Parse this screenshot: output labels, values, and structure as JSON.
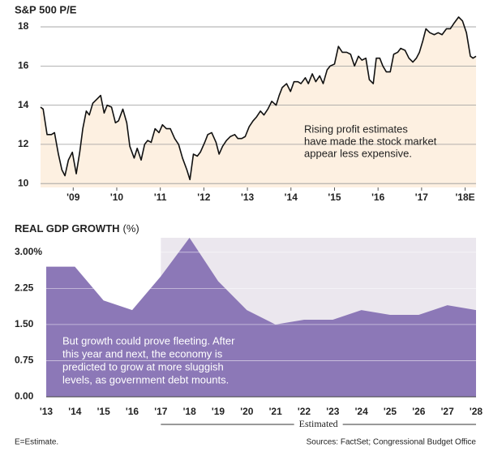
{
  "chart_data": [
    {
      "type": "line",
      "title": "S&P 500 P/E",
      "x": [
        2008.25,
        2008.31,
        2008.4,
        2008.5,
        2008.57,
        2008.66,
        2008.74,
        2008.81,
        2008.89,
        2008.98,
        2009.07,
        2009.15,
        2009.22,
        2009.3,
        2009.37,
        2009.45,
        2009.54,
        2009.63,
        2009.71,
        2009.78,
        2009.88,
        2009.97,
        2010.04,
        2010.14,
        2010.23,
        2010.3,
        2010.4,
        2010.47,
        2010.56,
        2010.64,
        2010.71,
        2010.79,
        2010.88,
        2010.97,
        2011.05,
        2011.14,
        2011.23,
        2011.33,
        2011.42,
        2011.51,
        2011.61,
        2011.68,
        2011.76,
        2011.85,
        2011.92,
        2012.02,
        2012.09,
        2012.18,
        2012.28,
        2012.35,
        2012.43,
        2012.52,
        2012.61,
        2012.71,
        2012.78,
        2012.87,
        2012.95,
        2013.04,
        2013.13,
        2013.21,
        2013.3,
        2013.38,
        2013.47,
        2013.56,
        2013.66,
        2013.73,
        2013.8,
        2013.9,
        2013.99,
        2014.07,
        2014.16,
        2014.23,
        2014.33,
        2014.4,
        2014.49,
        2014.57,
        2014.66,
        2014.74,
        2014.83,
        2014.9,
        2015.0,
        2015.09,
        2015.18,
        2015.28,
        2015.37,
        2015.46,
        2015.55,
        2015.63,
        2015.72,
        2015.8,
        2015.89,
        2015.96,
        2016.04,
        2016.11,
        2016.19,
        2016.28,
        2016.36,
        2016.45,
        2016.52,
        2016.62,
        2016.71,
        2016.8,
        2016.88,
        2016.95,
        2017.03,
        2017.1,
        2017.19,
        2017.29,
        2017.38,
        2017.47,
        2017.57,
        2017.66,
        2017.75,
        2017.85,
        2017.94,
        2018.03,
        2018.12,
        2018.18,
        2018.25
      ],
      "y": [
        13.9,
        13.8,
        12.5,
        12.5,
        12.6,
        11.5,
        10.7,
        10.4,
        11.2,
        11.6,
        10.5,
        11.6,
        12.8,
        13.7,
        13.5,
        14.1,
        14.3,
        14.5,
        13.6,
        14.0,
        13.9,
        13.1,
        13.2,
        13.8,
        13.1,
        11.9,
        11.3,
        11.8,
        11.2,
        12.0,
        12.2,
        12.1,
        12.8,
        12.6,
        13.0,
        12.8,
        12.8,
        12.3,
        12.0,
        11.3,
        10.7,
        10.2,
        11.5,
        11.4,
        11.6,
        12.1,
        12.5,
        12.6,
        12.1,
        11.5,
        11.9,
        12.2,
        12.4,
        12.5,
        12.3,
        12.3,
        12.4,
        12.9,
        13.2,
        13.4,
        13.7,
        13.5,
        13.8,
        14.2,
        14.0,
        14.5,
        14.9,
        15.1,
        14.7,
        15.2,
        15.2,
        15.1,
        15.4,
        15.1,
        15.6,
        15.2,
        15.5,
        15.1,
        15.8,
        16.0,
        16.1,
        17.0,
        16.7,
        16.7,
        16.6,
        16.0,
        16.5,
        16.3,
        16.4,
        15.3,
        15.1,
        16.4,
        16.4,
        16.0,
        15.7,
        15.7,
        16.6,
        16.7,
        16.9,
        16.8,
        16.4,
        16.2,
        16.4,
        16.7,
        17.3,
        17.9,
        17.7,
        17.6,
        17.7,
        17.6,
        17.9,
        17.9,
        18.2,
        18.5,
        18.3,
        17.7,
        16.5,
        16.4,
        16.5
      ],
      "xlim": [
        2008.25,
        2018.25
      ],
      "xticks": [
        {
          "value": 2009,
          "label": "'09"
        },
        {
          "value": 2010,
          "label": "'10"
        },
        {
          "value": 2011,
          "label": "'11"
        },
        {
          "value": 2012,
          "label": "'12"
        },
        {
          "value": 2013,
          "label": "'13"
        },
        {
          "value": 2014,
          "label": "'14"
        },
        {
          "value": 2015,
          "label": "'15"
        },
        {
          "value": 2016,
          "label": "'16"
        },
        {
          "value": 2017,
          "label": "'17"
        },
        {
          "value": 2018,
          "label": "'18E"
        }
      ],
      "ylim": [
        9.8,
        18.5
      ],
      "yticks": [
        10,
        12,
        14,
        16,
        18
      ],
      "color": "#111111",
      "fill": "#fdf0e1",
      "grid": true,
      "annotation": [
        "Rising profit estimates",
        "have made the stock market",
        "appear less expensive."
      ]
    },
    {
      "type": "area",
      "title": "REAL GDP GROWTH",
      "unit": "(%)",
      "categories": [
        "'13",
        "'14",
        "'15",
        "'16",
        "'17",
        "'18",
        "'19",
        "'20",
        "'21",
        "'22",
        "'23",
        "'24",
        "'25",
        "'26",
        "'27",
        "'28"
      ],
      "values": [
        2.7,
        2.7,
        2.0,
        1.8,
        2.5,
        3.3,
        2.4,
        1.8,
        1.5,
        1.6,
        1.6,
        1.8,
        1.7,
        1.7,
        1.9,
        1.8
      ],
      "ylim": [
        0,
        3.3
      ],
      "yticks": [
        {
          "value": 0,
          "label": "0.00"
        },
        {
          "value": 0.75,
          "label": "0.75"
        },
        {
          "value": 1.5,
          "label": "1.50"
        },
        {
          "value": 2.25,
          "label": "2.25"
        },
        {
          "value": 3,
          "label": "3.00%"
        }
      ],
      "color": "#8c78b7",
      "grid": true,
      "estimated_from": "'17",
      "estimated_label": "Estimated",
      "annotation": [
        "But growth could prove fleeting. After",
        "this year and next, the economy is",
        "predicted to grow at more sluggish",
        "levels, as government debt mounts."
      ]
    }
  ],
  "footer": {
    "note": "E=Estimate.",
    "source": "Sources: FactSet; Congressional Budget Office"
  }
}
